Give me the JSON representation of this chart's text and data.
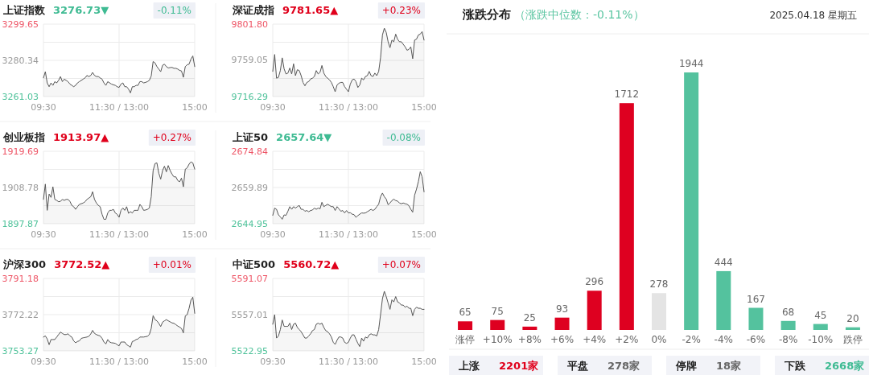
{
  "chart_data": [
    {
      "type": "area",
      "title": "上证指数",
      "subtitle": "3276.73▼",
      "annotations": [
        "-0.11%"
      ],
      "categories": [
        "09:30",
        null,
        null,
        null,
        null,
        null,
        null,
        null,
        null,
        null,
        null,
        null,
        null,
        null,
        null,
        null,
        null,
        null,
        null,
        null,
        null,
        null,
        null,
        null,
        null,
        null,
        null,
        null,
        null,
        null,
        null,
        null,
        null,
        null,
        null,
        null,
        null,
        null,
        null,
        null,
        "11:30 / 13:00",
        null,
        null,
        null,
        null,
        null,
        null,
        null,
        null,
        null,
        null,
        null,
        null,
        null,
        null,
        null,
        null,
        null,
        null,
        null,
        null,
        null,
        null,
        null,
        null,
        null,
        null,
        null,
        null,
        null,
        null,
        null,
        null,
        null,
        null,
        null,
        null,
        null,
        null,
        null,
        "15:00"
      ],
      "series": [
        {
          "color": "#555555",
          "values": [
            3271.0,
            3274.3,
            3268.3,
            3266.3,
            3268.3,
            3267.0,
            3269.0,
            3268.3,
            3269.7,
            3271.7,
            3269.0,
            3270.3,
            3269.7,
            3269.0,
            3267.7,
            3267.0,
            3266.3,
            3267.0,
            3268.3,
            3269.0,
            3269.7,
            3270.3,
            3271.0,
            3272.3,
            3271.7,
            3272.3,
            3273.9,
            3272.3,
            3271.7,
            3271.7,
            3271.0,
            3270.3,
            3268.3,
            3267.0,
            3269.0,
            3268.3,
            3267.7,
            3267.3,
            3267.0,
            3266.3,
            3265.9,
            3267.7,
            3268.3,
            3266.3,
            3266.3,
            3265.0,
            3263.0,
            3266.3,
            3266.3,
            3267.0,
            3267.0,
            3269.0,
            3269.0,
            3268.3,
            3268.6,
            3269.0,
            3269.7,
            3272.0,
            3279.7,
            3279.0,
            3277.0,
            3275.7,
            3274.3,
            3277.7,
            3278.3,
            3277.0,
            3276.3,
            3276.5,
            3276.6,
            3276.1,
            3276.1,
            3275.7,
            3275.0,
            3274.7,
            3271.3,
            3277.0,
            3278.0,
            3278.3,
            3281.0,
            3282.7,
            3277.0
          ]
        }
      ],
      "ylim": [
        3261.03,
        3299.65
      ],
      "yticks": [
        3261.03,
        {
          "value": 3270.69,
          "label": null
        },
        3280.34,
        {
          "value": 3289.99,
          "label": null
        },
        3299.65
      ],
      "grid": true
    },
    {
      "type": "area",
      "title": "深证成指",
      "subtitle": "9781.65▲",
      "annotations": [
        "+0.23%"
      ],
      "categories": [
        "09:30",
        null,
        null,
        null,
        null,
        null,
        null,
        null,
        null,
        null,
        null,
        null,
        null,
        null,
        null,
        null,
        null,
        null,
        null,
        null,
        null,
        null,
        null,
        null,
        null,
        null,
        null,
        null,
        null,
        null,
        null,
        null,
        null,
        null,
        null,
        null,
        null,
        null,
        null,
        null,
        "11:30 / 13:00",
        null,
        null,
        null,
        null,
        null,
        null,
        null,
        null,
        null,
        null,
        null,
        null,
        null,
        null,
        null,
        null,
        null,
        null,
        null,
        null,
        null,
        null,
        null,
        null,
        null,
        null,
        null,
        null,
        null,
        null,
        null,
        null,
        null,
        null,
        null,
        null,
        null,
        null,
        null,
        "15:00"
      ],
      "series": [
        {
          "color": "#555555",
          "values": [
            9746,
            9766,
            9738,
            9739,
            9747,
            9762,
            9749,
            9743,
            9744,
            9750,
            9743,
            9755,
            9741,
            9748,
            9747,
            9741,
            9733,
            9729,
            9733,
            9734,
            9737,
            9738,
            9740,
            9747,
            9743,
            9745,
            9753,
            9744,
            9740,
            9738,
            9736,
            9733,
            9728,
            9722,
            9730,
            9732,
            9733,
            9733,
            9728,
            9725,
            9722,
            9731,
            9736,
            9737,
            9734,
            9727,
            9730,
            9738,
            9736,
            9740,
            9741,
            9746,
            9741,
            9740,
            9744,
            9741,
            9746,
            9762,
            9789,
            9797,
            9792,
            9781,
            9774,
            9783,
            9781,
            9790,
            9784,
            9781,
            9781,
            9778,
            9775,
            9771,
            9772,
            9775,
            9761,
            9783,
            9784,
            9789,
            9790,
            9793,
            9783
          ]
        }
      ],
      "ylim": [
        9716.29,
        9801.8
      ],
      "yticks": [
        9716.29,
        {
          "value": 9737.67,
          "label": null
        },
        9759.05,
        {
          "value": 9780.43,
          "label": null
        },
        {
          "value": 9801.8,
          "label": "9801.80"
        }
      ],
      "grid": true
    },
    {
      "type": "area",
      "title": "创业板指",
      "subtitle": "1913.97▲",
      "annotations": [
        "+0.27%"
      ],
      "categories": [
        "09:30",
        null,
        null,
        null,
        null,
        null,
        null,
        null,
        null,
        null,
        null,
        null,
        null,
        null,
        null,
        null,
        null,
        null,
        null,
        null,
        null,
        null,
        null,
        null,
        null,
        null,
        null,
        null,
        null,
        null,
        null,
        null,
        null,
        null,
        null,
        null,
        null,
        null,
        null,
        null,
        "11:30 / 13:00",
        null,
        null,
        null,
        null,
        null,
        null,
        null,
        null,
        null,
        null,
        null,
        null,
        null,
        null,
        null,
        null,
        null,
        null,
        null,
        null,
        null,
        null,
        null,
        null,
        null,
        null,
        null,
        null,
        null,
        null,
        null,
        null,
        null,
        null,
        null,
        null,
        null,
        null,
        null,
        "15:00"
      ],
      "series": [
        {
          "color": "#555555",
          "values": [
            1905.2,
            1909.8,
            1901.9,
            1906.8,
            1905.8,
            1909.0,
            1905.2,
            1904.9,
            1904.5,
            1904.6,
            1905.2,
            1904.9,
            1905.2,
            1905.2,
            1904.6,
            1903.4,
            1903.0,
            1902.2,
            1903.0,
            1903.7,
            1903.9,
            1904.1,
            1904.5,
            1905.2,
            1905.6,
            1906.0,
            1907.5,
            1905.2,
            1904.1,
            1903.4,
            1903.0,
            1900.7,
            1899.2,
            1899.2,
            1901.1,
            1901.9,
            1901.9,
            1902.2,
            1901.1,
            1900.7,
            1899.8,
            1901.9,
            1902.6,
            1901.9,
            1903.0,
            1901.0,
            1901.5,
            1901.1,
            1901.9,
            1901.9,
            1901.9,
            1903.7,
            1903.0,
            1901.9,
            1902.0,
            1902.2,
            1902.6,
            1906.0,
            1913.9,
            1916.0,
            1916.2,
            1913.1,
            1911.3,
            1913.9,
            1915.2,
            1913.5,
            1915.4,
            1913.9,
            1912.8,
            1912.0,
            1912.0,
            1910.9,
            1910.5,
            1911.6,
            1909.0,
            1914.3,
            1914.7,
            1915.8,
            1916.5,
            1916.2,
            1914.3
          ]
        }
      ],
      "ylim": [
        1897.87,
        1919.69
      ],
      "yticks": [
        1897.87,
        {
          "value": 1903.33,
          "label": null
        },
        1908.78,
        {
          "value": 1914.24,
          "label": null
        },
        1919.69
      ],
      "grid": true
    },
    {
      "type": "area",
      "title": "上证50",
      "subtitle": "2657.64▼",
      "annotations": [
        "-0.08%"
      ],
      "categories": [
        "09:30",
        null,
        null,
        null,
        null,
        null,
        null,
        null,
        null,
        null,
        null,
        null,
        null,
        null,
        null,
        null,
        null,
        null,
        null,
        null,
        null,
        null,
        null,
        null,
        null,
        null,
        null,
        null,
        null,
        null,
        null,
        null,
        null,
        null,
        null,
        null,
        null,
        null,
        null,
        null,
        "11:30 / 13:00",
        null,
        null,
        null,
        null,
        null,
        null,
        null,
        null,
        null,
        null,
        null,
        null,
        null,
        null,
        null,
        null,
        null,
        null,
        null,
        null,
        null,
        null,
        null,
        null,
        null,
        null,
        null,
        null,
        null,
        null,
        null,
        null,
        null,
        null,
        null,
        null,
        null,
        null,
        null,
        "15:00"
      ],
      "series": [
        {
          "color": "#555555",
          "values": [
            2648.4,
            2651.4,
            2650.9,
            2648.6,
            2647.8,
            2646.8,
            2648.6,
            2648.4,
            2650.1,
            2652.0,
            2650.9,
            2652.0,
            2651.4,
            2652.0,
            2652.5,
            2650.9,
            2650.9,
            2650.1,
            2650.4,
            2649.9,
            2650.4,
            2650.6,
            2651.4,
            2650.9,
            2651.4,
            2651.1,
            2653.8,
            2652.0,
            2652.5,
            2653.0,
            2652.5,
            2652.0,
            2652.0,
            2650.4,
            2652.0,
            2651.1,
            2650.1,
            2650.4,
            2649.4,
            2650.4,
            2649.4,
            2649.5,
            2648.9,
            2648.7,
            2647.6,
            2648.3,
            2648.9,
            2649.4,
            2649.3,
            2649.4,
            2649.9,
            2650.4,
            2650.9,
            2650.4,
            2650.9,
            2652.0,
            2653.0,
            2656.1,
            2657.6,
            2656.1,
            2655.1,
            2652.8,
            2653.5,
            2654.5,
            2655.1,
            2654.5,
            2654.3,
            2653.5,
            2653.2,
            2653.5,
            2653.2,
            2653.0,
            2652.4,
            2650.9,
            2649.7,
            2656.7,
            2659.2,
            2662.3,
            2666.4,
            2664.3,
            2658.1
          ]
        }
      ],
      "ylim": [
        2644.95,
        2674.84
      ],
      "yticks": [
        2644.95,
        {
          "value": 2652.42,
          "label": null
        },
        2659.89,
        {
          "value": 2667.37,
          "label": null
        },
        2674.84
      ],
      "grid": true
    },
    {
      "type": "area",
      "title": "沪深300",
      "subtitle": "3772.52▲",
      "annotations": [
        "+0.01%"
      ],
      "categories": [
        "09:30",
        null,
        null,
        null,
        null,
        null,
        null,
        null,
        null,
        null,
        null,
        null,
        null,
        null,
        null,
        null,
        null,
        null,
        null,
        null,
        null,
        null,
        null,
        null,
        null,
        null,
        null,
        null,
        null,
        null,
        null,
        null,
        null,
        null,
        null,
        null,
        null,
        null,
        null,
        null,
        "11:30 / 13:00",
        null,
        null,
        null,
        null,
        null,
        null,
        null,
        null,
        null,
        null,
        null,
        null,
        null,
        null,
        null,
        null,
        null,
        null,
        null,
        null,
        null,
        null,
        null,
        null,
        null,
        null,
        null,
        null,
        null,
        null,
        null,
        null,
        null,
        null,
        null,
        null,
        null,
        null,
        null,
        "15:00"
      ],
      "series": [
        {
          "color": "#555555",
          "values": [
            3760.5,
            3761.1,
            3759.5,
            3756.5,
            3759.2,
            3759.2,
            3759.2,
            3760.5,
            3761.8,
            3763.1,
            3762.4,
            3761.8,
            3761.8,
            3762.2,
            3761.1,
            3760.5,
            3758.5,
            3757.5,
            3758.2,
            3758.5,
            3759.8,
            3760.1,
            3760.3,
            3760.5,
            3760.9,
            3762.1,
            3764.0,
            3762.4,
            3761.8,
            3761.4,
            3761.1,
            3759.8,
            3757.9,
            3756.9,
            3759.2,
            3757.9,
            3757.5,
            3757.4,
            3757.2,
            3756.5,
            3755.9,
            3757.9,
            3757.9,
            3757.9,
            3756.5,
            3755.9,
            3755.2,
            3758.2,
            3758.5,
            3759.2,
            3759.5,
            3760.5,
            3760.5,
            3760.5,
            3760.7,
            3760.9,
            3761.8,
            3765.0,
            3771.7,
            3769.6,
            3769.0,
            3767.7,
            3766.0,
            3768.3,
            3769.0,
            3769.6,
            3769.0,
            3768.5,
            3767.9,
            3767.7,
            3767.0,
            3766.3,
            3765.7,
            3765.0,
            3762.7,
            3771.6,
            3772.2,
            3775.5,
            3779.8,
            3781.4,
            3772.9
          ]
        }
      ],
      "ylim": [
        3753.27,
        3791.18
      ],
      "yticks": [
        3753.27,
        {
          "value": 3762.75,
          "label": null
        },
        3772.22,
        {
          "value": 3781.7,
          "label": null
        },
        3791.18
      ],
      "grid": true
    },
    {
      "type": "area",
      "title": "中证500",
      "subtitle": "5560.72▲",
      "annotations": [
        "+0.07%"
      ],
      "categories": [
        "09:30",
        null,
        null,
        null,
        null,
        null,
        null,
        null,
        null,
        null,
        null,
        null,
        null,
        null,
        null,
        null,
        null,
        null,
        null,
        null,
        null,
        null,
        null,
        null,
        null,
        null,
        null,
        null,
        null,
        null,
        null,
        null,
        null,
        null,
        null,
        null,
        null,
        null,
        null,
        null,
        "11:30 / 13:00",
        null,
        null,
        null,
        null,
        null,
        null,
        null,
        null,
        null,
        null,
        null,
        null,
        null,
        null,
        null,
        null,
        null,
        null,
        null,
        null,
        null,
        null,
        null,
        null,
        null,
        null,
        null,
        null,
        null,
        null,
        null,
        null,
        null,
        null,
        null,
        null,
        null,
        null,
        null,
        "15:00"
      ],
      "series": [
        {
          "color": "#555555",
          "values": [
            5548,
            5557,
            5535,
            5537,
            5543,
            5552,
            5546,
            5546,
            5546,
            5549,
            5543,
            5548,
            5549,
            5545,
            5543,
            5541,
            5538,
            5535,
            5535,
            5537,
            5539,
            5542,
            5543,
            5548,
            5549,
            5548,
            5549,
            5545,
            5542,
            5541,
            5539,
            5536,
            5531,
            5529,
            5533,
            5536,
            5536,
            5535,
            5531,
            5530,
            5531,
            5535,
            5538,
            5538,
            5534,
            5530,
            5527,
            5535,
            5532,
            5536,
            5535,
            5538,
            5539,
            5538,
            5538,
            5537,
            5543,
            5557,
            5572,
            5579,
            5574,
            5568,
            5562,
            5571,
            5569,
            5574,
            5569,
            5568,
            5566,
            5566,
            5564,
            5565,
            5563,
            5563,
            5556,
            5562,
            5564,
            5563,
            5563,
            5562,
            5562
          ]
        }
      ],
      "ylim": [
        5522.95,
        5591.07
      ],
      "yticks": [
        5522.95,
        {
          "value": 5539.98,
          "label": null
        },
        5557.01,
        {
          "value": 5574.04,
          "label": null
        },
        5591.07
      ],
      "grid": true
    },
    {
      "type": "bar",
      "title": "涨跌分布",
      "subtitle": "（涨跌中位数：-0.11%）",
      "annotations": [
        "2025.04.18 星期五",
        "上涨",
        "2201家",
        "平盘",
        "278家",
        "停牌",
        "18家",
        "下跌",
        "2668家"
      ],
      "categories": [
        "涨停",
        "+10%",
        "+8%",
        "+6%",
        "+4%",
        "+2%",
        "0%",
        "-2%",
        "-4%",
        "-6%",
        "-8%",
        "-10%",
        "跌停"
      ],
      "values": [
        65,
        75,
        25,
        93,
        296,
        1712,
        278,
        1944,
        444,
        167,
        68,
        45,
        20
      ],
      "colors": [
        "#de0020",
        "#de0020",
        "#de0020",
        "#de0020",
        "#de0020",
        "#de0020",
        "#e4e4e4",
        "#54c29e",
        "#54c29e",
        "#54c29e",
        "#54c29e",
        "#54c29e",
        "#54c29e"
      ],
      "data_labels": true
    }
  ]
}
